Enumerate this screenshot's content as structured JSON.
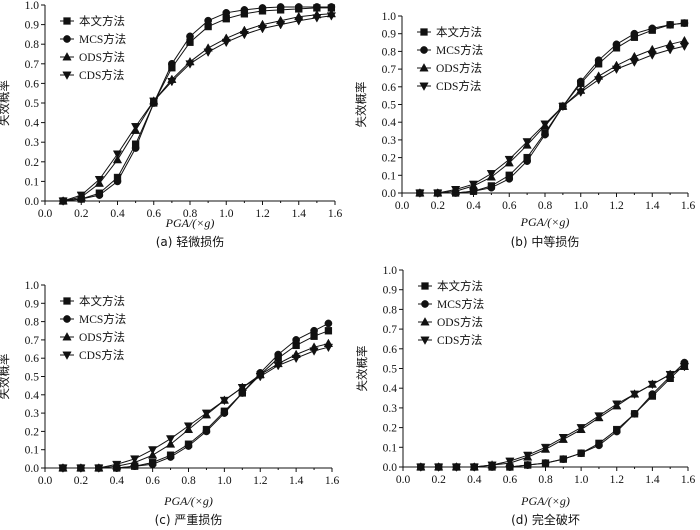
{
  "legend_labels": [
    "本文方法",
    "MCS方法",
    "ODS方法",
    "CDS方法"
  ],
  "chart_data": [
    {
      "type": "line",
      "caption": "(a) 轻微损伤",
      "xlabel": "PGA/(×g)",
      "ylabel": "失效概率",
      "xlim": [
        0.0,
        1.6
      ],
      "ylim": [
        0.0,
        1.0
      ],
      "xticks": [
        "0.0",
        "0.2",
        "0.4",
        "0.6",
        "0.8",
        "1.0",
        "1.2",
        "1.4",
        "1.6"
      ],
      "yticks": [
        "0.0",
        "0.1",
        "0.2",
        "0.3",
        "0.4",
        "0.5",
        "0.6",
        "0.7",
        "0.8",
        "0.9",
        "1.0"
      ],
      "legend_position": "top-left",
      "x": [
        0.1,
        0.2,
        0.3,
        0.4,
        0.5,
        0.6,
        0.7,
        0.8,
        0.9,
        1.0,
        1.1,
        1.2,
        1.3,
        1.4,
        1.5,
        1.58
      ],
      "series": [
        {
          "name": "本文方法",
          "marker": "square",
          "values": [
            0.0,
            0.01,
            0.04,
            0.12,
            0.29,
            0.5,
            0.68,
            0.81,
            0.89,
            0.93,
            0.955,
            0.97,
            0.975,
            0.98,
            0.985,
            0.985
          ]
        },
        {
          "name": "MCS方法",
          "marker": "circle",
          "values": [
            0.0,
            0.01,
            0.03,
            0.1,
            0.27,
            0.5,
            0.7,
            0.84,
            0.92,
            0.96,
            0.975,
            0.985,
            0.99,
            0.99,
            0.99,
            0.99
          ]
        },
        {
          "name": "ODS方法",
          "marker": "triangle-up",
          "values": [
            0.0,
            0.02,
            0.09,
            0.21,
            0.36,
            0.51,
            0.62,
            0.71,
            0.78,
            0.83,
            0.87,
            0.9,
            0.92,
            0.94,
            0.95,
            0.955
          ]
        },
        {
          "name": "CDS方法",
          "marker": "triangle-down",
          "values": [
            0.0,
            0.03,
            0.11,
            0.24,
            0.38,
            0.51,
            0.61,
            0.7,
            0.76,
            0.81,
            0.85,
            0.88,
            0.9,
            0.92,
            0.935,
            0.945
          ]
        }
      ]
    },
    {
      "type": "line",
      "caption": "(b) 中等损伤",
      "xlabel": "PGA/(×g)",
      "ylabel": "失效概率",
      "xlim": [
        0.0,
        1.6
      ],
      "ylim": [
        0.0,
        1.0
      ],
      "xticks": [
        "0.0",
        "0.2",
        "0.4",
        "0.6",
        "0.8",
        "1.0",
        "1.2",
        "1.4",
        "1.6"
      ],
      "yticks": [
        "0.0",
        "0.1",
        "0.2",
        "0.3",
        "0.4",
        "0.5",
        "0.6",
        "0.7",
        "0.8",
        "0.9",
        "1.0"
      ],
      "legend_position": "top-left",
      "x": [
        0.1,
        0.2,
        0.3,
        0.4,
        0.5,
        0.6,
        0.7,
        0.8,
        0.9,
        1.0,
        1.1,
        1.2,
        1.3,
        1.4,
        1.5,
        1.58
      ],
      "series": [
        {
          "name": "本文方法",
          "marker": "square",
          "values": [
            0.0,
            0.0,
            0.0,
            0.01,
            0.04,
            0.1,
            0.2,
            0.34,
            0.49,
            0.62,
            0.73,
            0.82,
            0.88,
            0.92,
            0.95,
            0.96
          ]
        },
        {
          "name": "MCS方法",
          "marker": "circle",
          "values": [
            0.0,
            0.0,
            0.0,
            0.01,
            0.03,
            0.08,
            0.18,
            0.33,
            0.49,
            0.63,
            0.75,
            0.84,
            0.9,
            0.93,
            0.95,
            0.96
          ]
        },
        {
          "name": "ODS方法",
          "marker": "triangle-up",
          "values": [
            0.0,
            0.0,
            0.01,
            0.04,
            0.09,
            0.17,
            0.27,
            0.38,
            0.49,
            0.58,
            0.66,
            0.72,
            0.77,
            0.81,
            0.84,
            0.86
          ]
        },
        {
          "name": "CDS方法",
          "marker": "triangle-down",
          "values": [
            0.0,
            0.0,
            0.02,
            0.05,
            0.11,
            0.19,
            0.29,
            0.39,
            0.49,
            0.57,
            0.64,
            0.7,
            0.74,
            0.78,
            0.81,
            0.83
          ]
        }
      ]
    },
    {
      "type": "line",
      "caption": "(c) 严重损伤",
      "xlabel": "PGA/(×g)",
      "ylabel": "失效概率",
      "xlim": [
        0.0,
        1.6
      ],
      "ylim": [
        0.0,
        1.0
      ],
      "xticks": [
        "0.0",
        "0.2",
        "0.4",
        "0.6",
        "0.8",
        "1.0",
        "1.2",
        "1.4",
        "1.6"
      ],
      "yticks": [
        "0.0",
        "0.1",
        "0.2",
        "0.3",
        "0.4",
        "0.5",
        "0.6",
        "0.7",
        "0.8",
        "0.9",
        "1.0"
      ],
      "legend_position": "top-left",
      "x": [
        0.1,
        0.2,
        0.3,
        0.4,
        0.5,
        0.6,
        0.7,
        0.8,
        0.9,
        1.0,
        1.1,
        1.2,
        1.3,
        1.4,
        1.5,
        1.58
      ],
      "series": [
        {
          "name": "本文方法",
          "marker": "square",
          "values": [
            0.0,
            0.0,
            0.0,
            0.0,
            0.01,
            0.03,
            0.07,
            0.13,
            0.21,
            0.31,
            0.41,
            0.51,
            0.6,
            0.67,
            0.72,
            0.75
          ]
        },
        {
          "name": "MCS方法",
          "marker": "circle",
          "values": [
            0.0,
            0.0,
            0.0,
            0.0,
            0.01,
            0.02,
            0.06,
            0.12,
            0.2,
            0.3,
            0.41,
            0.52,
            0.62,
            0.7,
            0.75,
            0.79
          ]
        },
        {
          "name": "ODS方法",
          "marker": "triangle-up",
          "values": [
            0.0,
            0.0,
            0.0,
            0.01,
            0.03,
            0.07,
            0.13,
            0.21,
            0.29,
            0.37,
            0.44,
            0.51,
            0.57,
            0.62,
            0.66,
            0.68
          ]
        },
        {
          "name": "CDS方法",
          "marker": "triangle-down",
          "values": [
            0.0,
            0.0,
            0.0,
            0.02,
            0.05,
            0.1,
            0.16,
            0.23,
            0.3,
            0.37,
            0.44,
            0.5,
            0.56,
            0.6,
            0.64,
            0.66
          ]
        }
      ]
    },
    {
      "type": "line",
      "caption": "(d) 完全破坏",
      "xlabel": "PGA/(×g)",
      "ylabel": "失效概率",
      "xlim": [
        0.0,
        1.6
      ],
      "ylim": [
        0.0,
        1.0
      ],
      "xticks": [
        "0.0",
        "0.2",
        "0.4",
        "0.6",
        "0.8",
        "1.0",
        "1.2",
        "1.4",
        "1.6"
      ],
      "yticks": [
        "0.0",
        "0.1",
        "0.2",
        "0.3",
        "0.4",
        "0.5",
        "0.6",
        "0.7",
        "0.8",
        "0.9",
        "1.0"
      ],
      "legend_position": "top-left",
      "x": [
        0.1,
        0.2,
        0.3,
        0.4,
        0.5,
        0.6,
        0.7,
        0.8,
        0.9,
        1.0,
        1.1,
        1.2,
        1.3,
        1.4,
        1.5,
        1.58
      ],
      "series": [
        {
          "name": "本文方法",
          "marker": "square",
          "values": [
            0.0,
            0.0,
            0.0,
            0.0,
            0.0,
            0.0,
            0.01,
            0.02,
            0.04,
            0.07,
            0.12,
            0.19,
            0.27,
            0.36,
            0.45,
            0.52
          ]
        },
        {
          "name": "MCS方法",
          "marker": "circle",
          "values": [
            0.0,
            0.0,
            0.0,
            0.0,
            0.0,
            0.0,
            0.01,
            0.02,
            0.04,
            0.07,
            0.11,
            0.18,
            0.27,
            0.37,
            0.46,
            0.53
          ]
        },
        {
          "name": "ODS方法",
          "marker": "triangle-up",
          "values": [
            0.0,
            0.0,
            0.0,
            0.0,
            0.01,
            0.02,
            0.05,
            0.09,
            0.14,
            0.19,
            0.25,
            0.31,
            0.37,
            0.42,
            0.47,
            0.51
          ]
        },
        {
          "name": "CDS方法",
          "marker": "triangle-down",
          "values": [
            0.0,
            0.0,
            0.0,
            0.0,
            0.01,
            0.03,
            0.06,
            0.1,
            0.15,
            0.2,
            0.26,
            0.32,
            0.37,
            0.42,
            0.47,
            0.51
          ]
        }
      ]
    }
  ]
}
